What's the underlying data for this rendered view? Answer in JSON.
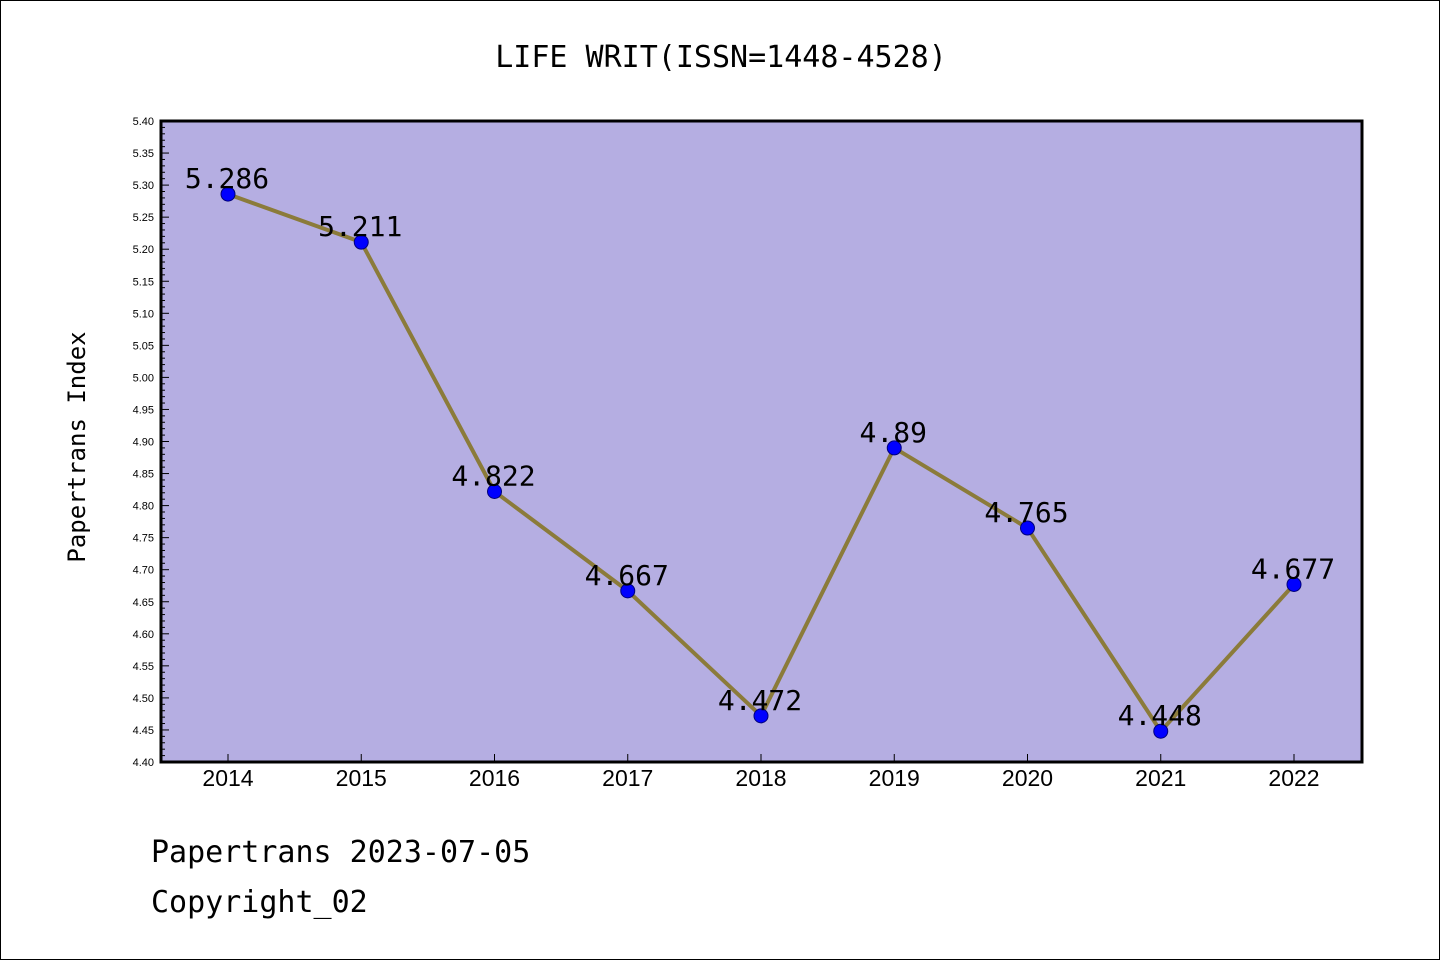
{
  "chart_data": {
    "type": "line",
    "title": "LIFE WRIT(ISSN=1448-4528)",
    "xlabel": "",
    "ylabel": "Papertrans Index",
    "categories": [
      "2014",
      "2015",
      "2016",
      "2017",
      "2018",
      "2019",
      "2020",
      "2021",
      "2022"
    ],
    "series": [
      {
        "values": [
          5.286,
          5.211,
          4.822,
          4.667,
          4.472,
          4.89,
          4.765,
          4.448,
          4.677
        ],
        "data_labels": [
          "5.286",
          "5.211",
          "4.822",
          "4.667",
          "4.472",
          "4.89",
          "4.765",
          "4.448",
          "4.677"
        ]
      }
    ],
    "ylim": [
      4.4,
      5.4
    ],
    "yticks": [
      "4.40",
      "4.45",
      "4.50",
      "4.55",
      "4.60",
      "4.65",
      "4.70",
      "4.75",
      "4.80",
      "4.85",
      "4.90",
      "4.95",
      "5.00",
      "5.05",
      "5.10",
      "5.15",
      "5.20",
      "5.25",
      "5.30",
      "5.35",
      "5.40"
    ],
    "grid": false,
    "colors": {
      "plot_background": "#b5aee2",
      "line": "#8b7b3a",
      "marker": "#0000ff",
      "frame": "#000000"
    }
  },
  "footer": {
    "line1": "Papertrans 2023-07-05",
    "line2": "Copyright_02"
  }
}
